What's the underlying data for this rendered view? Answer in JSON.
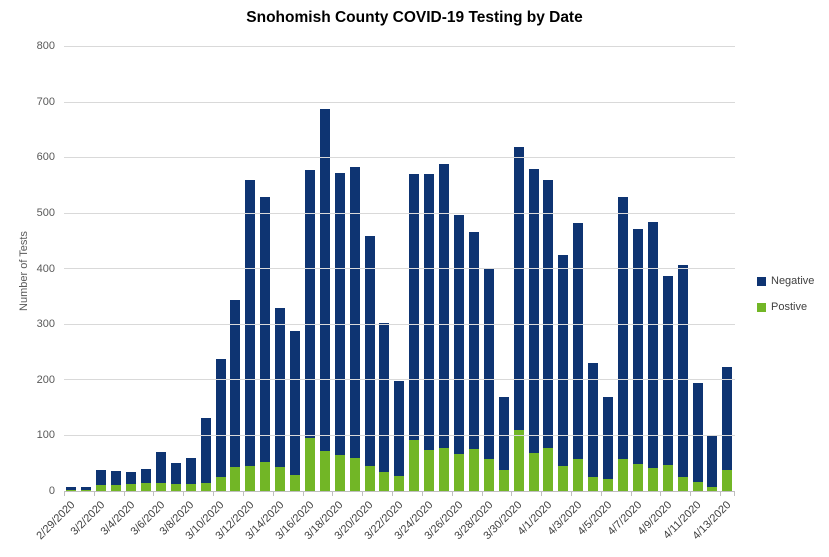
{
  "chart": {
    "title": "Snohomish County COVID-19 Testing by Date"
  },
  "chart_data": {
    "type": "bar",
    "stacked": true,
    "title": "Snohomish County COVID-19 Testing by Date",
    "xlabel": "",
    "ylabel": "Number of Tests",
    "ylim": [
      0,
      800
    ],
    "ytick_step": 100,
    "grid": true,
    "legend_position": "right",
    "x_label_every": 2,
    "categories": [
      "2/29/2020",
      "3/1/2020",
      "3/2/2020",
      "3/3/2020",
      "3/4/2020",
      "3/5/2020",
      "3/6/2020",
      "3/7/2020",
      "3/8/2020",
      "3/9/2020",
      "3/10/2020",
      "3/11/2020",
      "3/12/2020",
      "3/13/2020",
      "3/14/2020",
      "3/15/2020",
      "3/16/2020",
      "3/17/2020",
      "3/18/2020",
      "3/19/2020",
      "3/20/2020",
      "3/21/2020",
      "3/22/2020",
      "3/23/2020",
      "3/24/2020",
      "3/25/2020",
      "3/26/2020",
      "3/27/2020",
      "3/28/2020",
      "3/29/2020",
      "3/30/2020",
      "3/31/2020",
      "4/1/2020",
      "4/2/2020",
      "4/3/2020",
      "4/4/2020",
      "4/5/2020",
      "4/6/2020",
      "4/7/2020",
      "4/8/2020",
      "4/9/2020",
      "4/10/2020",
      "4/11/2020",
      "4/12/2020",
      "4/13/2020"
    ],
    "series": [
      {
        "name": "Negative",
        "color": "#0e3472",
        "values": [
          7,
          6,
          27,
          25,
          22,
          25,
          56,
          38,
          47,
          116,
          213,
          301,
          515,
          477,
          287,
          259,
          482,
          615,
          509,
          524,
          415,
          269,
          172,
          480,
          498,
          513,
          430,
          392,
          343,
          133,
          510,
          512,
          483,
          380,
          426,
          205,
          148,
          472,
          425,
          442,
          341,
          383,
          177,
          93,
          186
        ]
      },
      {
        "name": "Postive",
        "color": "#72b626",
        "values": [
          1,
          2,
          10,
          11,
          12,
          14,
          15,
          13,
          13,
          15,
          25,
          44,
          45,
          53,
          43,
          29,
          96,
          73,
          64,
          59,
          45,
          34,
          27,
          92,
          74,
          77,
          67,
          75,
          57,
          37,
          110,
          68,
          77,
          45,
          57,
          26,
          22,
          58,
          48,
          42,
          47,
          25,
          17,
          7,
          38
        ]
      }
    ],
    "totals": [
      8,
      8,
      37,
      36,
      34,
      39,
      71,
      51,
      60,
      131,
      238,
      345,
      560,
      530,
      330,
      288,
      578,
      688,
      573,
      583,
      460,
      303,
      199,
      572,
      572,
      590,
      497,
      467,
      400,
      170,
      620,
      580,
      560,
      425,
      483,
      231,
      170,
      530,
      473,
      484,
      388,
      408,
      194,
      100,
      224
    ]
  }
}
